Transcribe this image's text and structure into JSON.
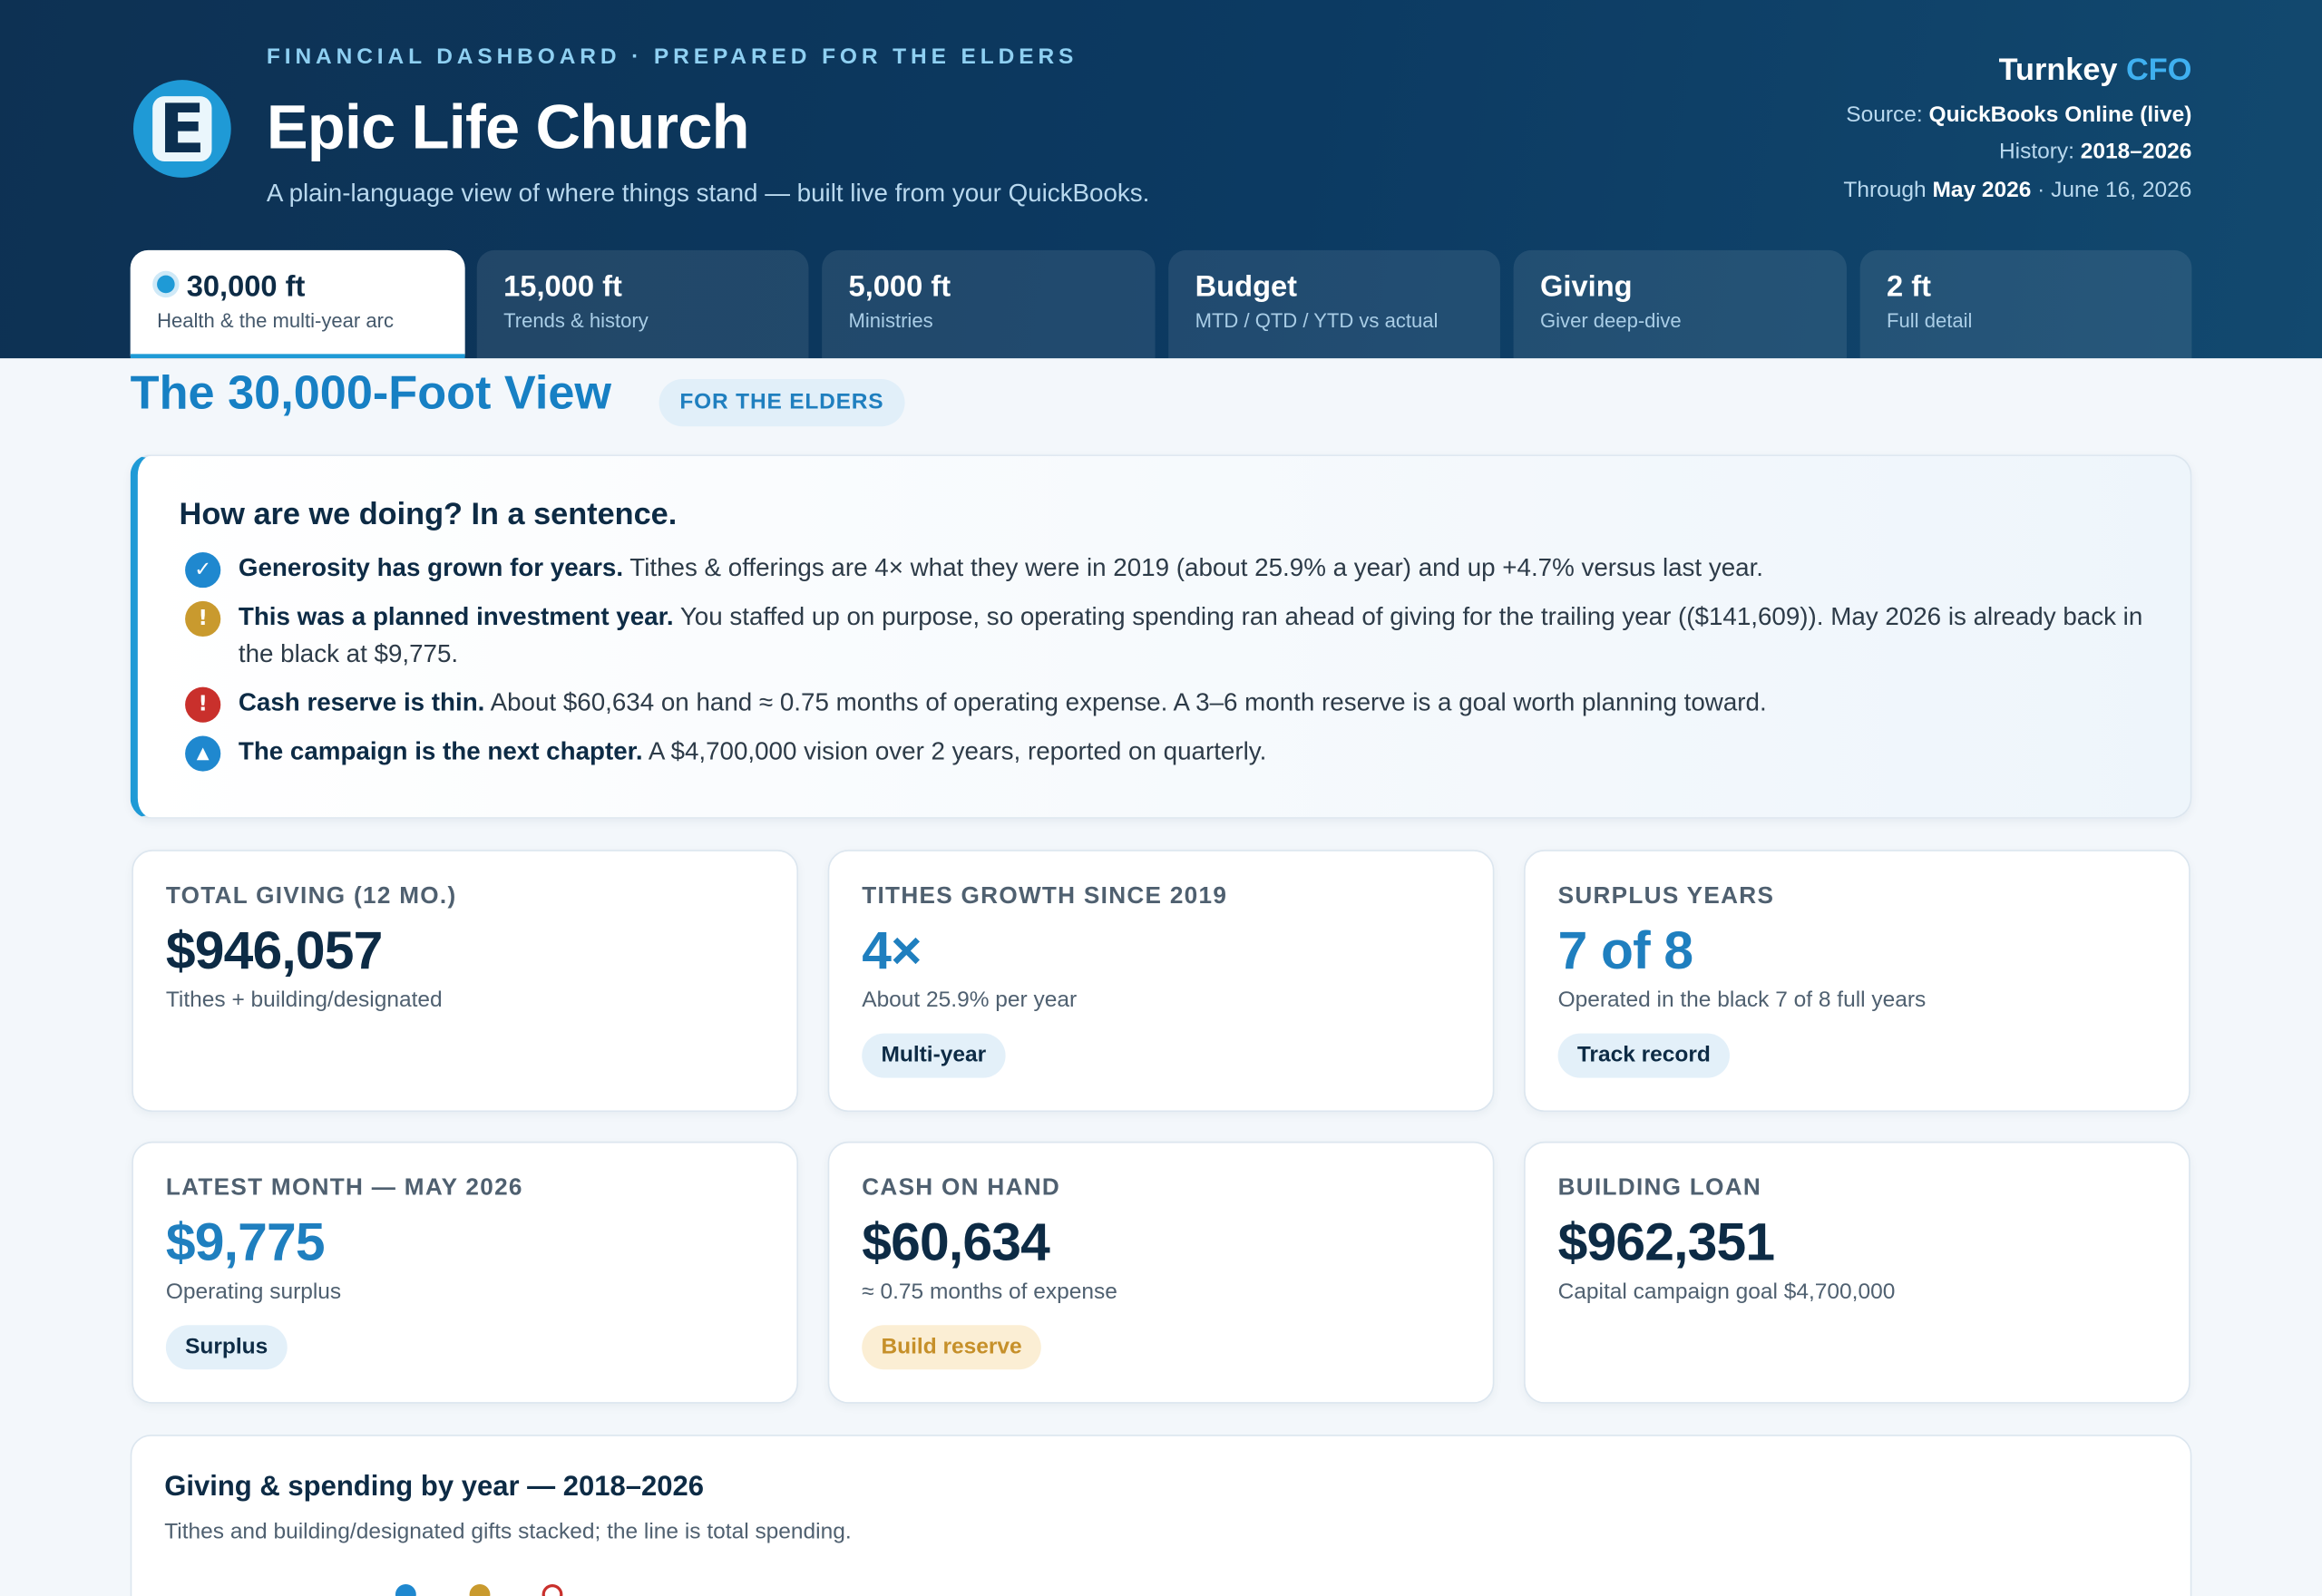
{
  "header": {
    "eyebrow": "FINANCIAL DASHBOARD · PREPARED FOR THE ELDERS",
    "church_name": "Epic Life Church",
    "logo_letter": "E",
    "tagline": "A plain-language view of where things stand — built live from your QuickBooks.",
    "brand_main": "Turnkey",
    "brand_accent": "CFO",
    "source_label": "Source:",
    "source_value": "QuickBooks Online (live)",
    "history_label": "History:",
    "history_value": "2018–2026",
    "through_label": "Through",
    "through_value": "May 2026",
    "through_date": "· June 16, 2026"
  },
  "tabs": [
    {
      "title": "30,000 ft",
      "sub": "Health & the multi-year arc",
      "active": true
    },
    {
      "title": "15,000 ft",
      "sub": "Trends & history"
    },
    {
      "title": "5,000 ft",
      "sub": "Ministries"
    },
    {
      "title": "Budget",
      "sub": "MTD / QTD / YTD vs actual"
    },
    {
      "title": "Giving",
      "sub": "Giver deep-dive"
    },
    {
      "title": "2 ft",
      "sub": "Full detail"
    }
  ],
  "page": {
    "title": "The 30,000-Foot View",
    "pill": "FOR THE ELDERS"
  },
  "summary": {
    "heading": "How are we doing? In a sentence.",
    "items": [
      {
        "icon": "check-icon",
        "glyph": "✓",
        "bold": "Generosity has grown for years.",
        "text": " Tithes & offerings are 4× what they were in 2019 (about 25.9% a year) and up +4.7% versus last year."
      },
      {
        "icon": "warning-icon",
        "glyph": "!",
        "bold": "This was a planned investment year.",
        "text": " You staffed up on purpose, so operating spending ran ahead of giving for the trailing year (($141,609)). May 2026 is already back in the black at $9,775."
      },
      {
        "icon": "alert-icon",
        "glyph": "!",
        "bold": "Cash reserve is thin.",
        "text": " About $60,634 on hand ≈ 0.75 months of operating expense. A 3–6 month reserve is a goal worth planning toward."
      },
      {
        "icon": "triangle-icon",
        "glyph": "▲",
        "bold": "The campaign is the next chapter.",
        "text": " A $4,700,000 vision over 2 years, reported on quarterly."
      }
    ]
  },
  "cards": [
    {
      "label": "TOTAL GIVING (12 MO.)",
      "value": "$946,057",
      "sub": "Tithes + building/designated",
      "badge": ""
    },
    {
      "label": "TITHES GROWTH SINCE 2019",
      "value": "4×",
      "sub": "About 25.9% per year",
      "badge": "Multi-year"
    },
    {
      "label": "SURPLUS YEARS",
      "value": "7 of 8",
      "sub": "Operated in the black 7 of 8 full years",
      "badge": "Track record"
    },
    {
      "label": "LATEST MONTH — MAY 2026",
      "value": "$9,775",
      "sub": "Operating surplus",
      "badge": "Surplus"
    },
    {
      "label": "CASH ON HAND",
      "value": "$60,634",
      "sub": "≈ 0.75 months of expense",
      "badge": "Build reserve"
    },
    {
      "label": "BUILDING LOAN",
      "value": "$962,351",
      "sub": "Capital campaign goal $4,700,000",
      "badge": ""
    }
  ],
  "chart": {
    "title": "Giving & spending by year — 2018–2026",
    "subtitle": "Tithes and building/designated gifts stacked; the line is total spending."
  },
  "colors": {
    "accent": "#1f9ad6",
    "header_bg": "#0d3153",
    "amber": "#c99a2e",
    "red": "#c9302c"
  }
}
